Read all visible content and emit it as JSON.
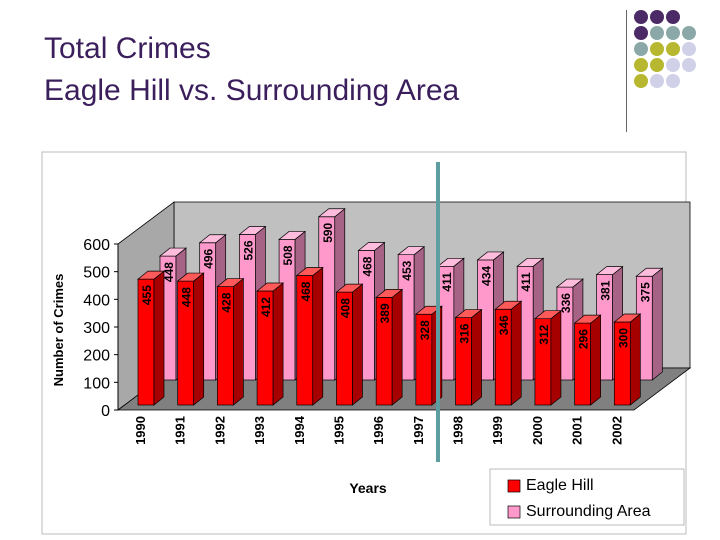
{
  "title": {
    "line1": "Total Crimes",
    "line2": "Eagle Hill vs. Surrounding Area"
  },
  "colors": {
    "title": "#3b1f5c",
    "eagle_hill": "#ff0000",
    "surrounding": "#ff99cc",
    "floor": "#808080",
    "wall": "#c0c0c0",
    "marker": "#5f9ea0",
    "dot_purple": "#4b2a66",
    "dot_teal": "#8aa8a8",
    "dot_olive": "#b8b830",
    "dot_lavender": "#d0d0e8"
  },
  "decoration_dots": [
    [
      "dot_purple",
      "dot_purple",
      "dot_purple",
      "",
      ""
    ],
    [
      "dot_purple",
      "dot_teal",
      "dot_teal",
      "dot_teal",
      ""
    ],
    [
      "dot_teal",
      "dot_olive",
      "dot_olive",
      "dot_lavender",
      ""
    ],
    [
      "dot_olive",
      "dot_olive",
      "dot_lavender",
      "dot_lavender",
      ""
    ],
    [
      "dot_olive",
      "dot_lavender",
      "dot_lavender",
      "",
      ""
    ]
  ],
  "chart_data": {
    "type": "bar",
    "categories": [
      "1990",
      "1991",
      "1992",
      "1993",
      "1994",
      "1995",
      "1996",
      "1997",
      "1998",
      "1999",
      "2000",
      "2001",
      "2002"
    ],
    "series": [
      {
        "name": "Eagle Hill",
        "values": [
          455,
          448,
          428,
          412,
          468,
          408,
          389,
          328,
          316,
          346,
          312,
          296,
          300
        ]
      },
      {
        "name": "Surrounding Area",
        "values": [
          448,
          496,
          526,
          508,
          590,
          468,
          453,
          411,
          434,
          411,
          336,
          381,
          375
        ]
      }
    ],
    "xlabel": "Years",
    "ylabel": "Number of Crimes",
    "ylim": [
      0,
      600
    ],
    "yticks": [
      "0",
      "100",
      "200",
      "300",
      "400",
      "500",
      "600"
    ],
    "legend": "bottom-right",
    "grid": false
  }
}
